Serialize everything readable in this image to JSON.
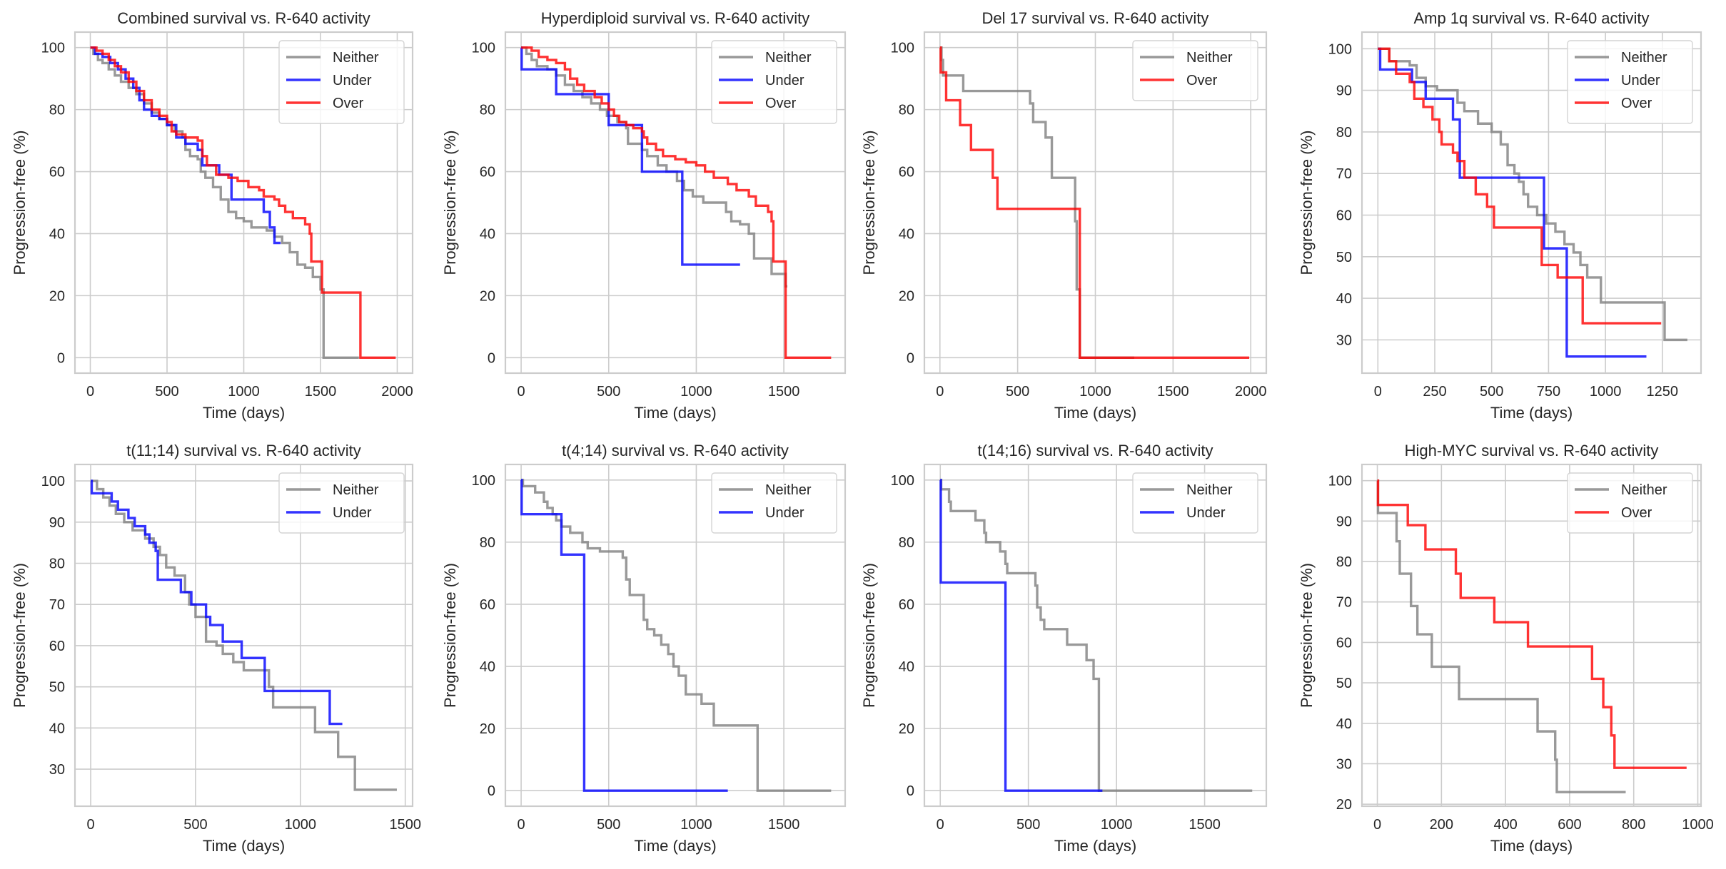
{
  "figure": {
    "series_colors": {
      "Neither": "#808080",
      "Under": "#0000ff",
      "Over": "#ff0000"
    }
  },
  "chart_data": [
    {
      "type": "line",
      "title": "Combined survival vs. R-640 activity",
      "xlabel": "Time (days)",
      "ylabel": "Progression-free (%)",
      "xlim": [
        -100,
        2100
      ],
      "ylim": [
        -5,
        105
      ],
      "xticks": [
        0,
        500,
        1000,
        1500,
        2000
      ],
      "yticks": [
        0,
        20,
        40,
        60,
        80,
        100
      ],
      "grid": true,
      "legend": "top-right",
      "series": [
        {
          "name": "Neither",
          "x": [
            0,
            20,
            50,
            80,
            120,
            160,
            200,
            250,
            300,
            350,
            400,
            450,
            500,
            550,
            600,
            620,
            650,
            700,
            720,
            750,
            800,
            850,
            900,
            950,
            1000,
            1050,
            1100,
            1150,
            1200,
            1250,
            1300,
            1350,
            1400,
            1450,
            1500,
            1520,
            1750
          ],
          "y": [
            100,
            98,
            96,
            95,
            93,
            91,
            89,
            87,
            85,
            82,
            79,
            77,
            75,
            73,
            71,
            67,
            65,
            64,
            60,
            58,
            55,
            51,
            47,
            45,
            44,
            42,
            42,
            41,
            39,
            37,
            34,
            30,
            29,
            26,
            22,
            0,
            0
          ]
        },
        {
          "name": "Under",
          "x": [
            0,
            30,
            80,
            130,
            180,
            230,
            280,
            320,
            350,
            400,
            450,
            500,
            560,
            620,
            700,
            730,
            840,
            920,
            1130,
            1170,
            1200,
            1240
          ],
          "y": [
            100,
            98,
            97,
            95,
            93,
            90,
            87,
            83,
            80,
            78,
            77,
            75,
            71,
            69,
            67,
            62,
            59,
            51,
            47,
            42,
            37,
            37
          ]
        },
        {
          "name": "Over",
          "x": [
            0,
            40,
            80,
            120,
            160,
            200,
            250,
            300,
            350,
            400,
            450,
            500,
            530,
            560,
            620,
            700,
            730,
            760,
            820,
            900,
            960,
            1030,
            1100,
            1130,
            1200,
            1230,
            1270,
            1320,
            1400,
            1430,
            1440,
            1500,
            1510,
            1750,
            1760,
            1990
          ],
          "y": [
            100,
            99,
            98,
            96,
            94,
            92,
            89,
            86,
            83,
            80,
            78,
            76,
            73,
            72,
            71,
            70,
            65,
            62,
            59,
            58,
            57,
            55,
            54,
            52,
            51,
            49,
            47,
            45,
            43,
            40,
            31,
            31,
            21,
            21,
            0,
            0
          ]
        }
      ]
    },
    {
      "type": "line",
      "title": "Hyperdiploid survival vs. R-640 activity",
      "xlabel": "Time (days)",
      "ylabel": "Progression-free (%)",
      "xlim": [
        -90,
        1850
      ],
      "ylim": [
        -5,
        105
      ],
      "xticks": [
        0,
        500,
        1000,
        1500
      ],
      "yticks": [
        0,
        20,
        40,
        60,
        80,
        100
      ],
      "grid": true,
      "legend": "top-right",
      "series": [
        {
          "name": "Neither",
          "x": [
            0,
            30,
            60,
            90,
            150,
            200,
            250,
            300,
            350,
            400,
            450,
            490,
            550,
            600,
            610,
            690,
            720,
            780,
            830,
            890,
            930,
            980,
            1040,
            1170,
            1200,
            1250,
            1300,
            1330,
            1430,
            1510,
            1520
          ],
          "y": [
            100,
            98,
            96,
            94,
            93,
            91,
            88,
            86,
            84,
            82,
            80,
            78,
            76,
            74,
            69,
            67,
            65,
            62,
            60,
            57,
            54,
            52,
            50,
            47,
            44,
            43,
            40,
            32,
            27,
            23,
            23
          ]
        },
        {
          "name": "Under",
          "x": [
            0,
            3,
            200,
            500,
            690,
            920,
            1250
          ],
          "y": [
            100,
            93,
            85,
            75,
            60,
            30,
            30
          ]
        },
        {
          "name": "Over",
          "x": [
            0,
            60,
            100,
            150,
            200,
            250,
            280,
            320,
            360,
            420,
            460,
            500,
            530,
            560,
            600,
            640,
            690,
            700,
            720,
            770,
            810,
            880,
            940,
            1000,
            1050,
            1100,
            1180,
            1230,
            1300,
            1340,
            1410,
            1430,
            1440,
            1510,
            1770
          ],
          "y": [
            100,
            99,
            97,
            96,
            95,
            93,
            90,
            88,
            86,
            84,
            82,
            80,
            78,
            76,
            75,
            74,
            73,
            71,
            69,
            67,
            65,
            64,
            63,
            62,
            60,
            58,
            56,
            54,
            52,
            49,
            47,
            44,
            31,
            0,
            0
          ]
        }
      ]
    },
    {
      "type": "line",
      "title": "Del 17 survival vs. R-640 activity",
      "xlabel": "Time (days)",
      "ylabel": "Progression-free (%)",
      "xlim": [
        -100,
        2100
      ],
      "ylim": [
        -5,
        105
      ],
      "xticks": [
        0,
        500,
        1000,
        1500,
        2000
      ],
      "yticks": [
        0,
        20,
        40,
        60,
        80,
        100
      ],
      "grid": true,
      "legend": "top-right",
      "series": [
        {
          "name": "Neither",
          "x": [
            0,
            10,
            20,
            150,
            580,
            600,
            680,
            720,
            870,
            880,
            900,
            910,
            1250
          ],
          "y": [
            100,
            96,
            91,
            86,
            82,
            76,
            71,
            58,
            44,
            22,
            0,
            0,
            0
          ]
        },
        {
          "name": "Over",
          "x": [
            0,
            5,
            40,
            130,
            200,
            340,
            370,
            900,
            1990
          ],
          "y": [
            100,
            92,
            83,
            75,
            67,
            58,
            48,
            0,
            0
          ]
        }
      ]
    },
    {
      "type": "line",
      "title": "Amp 1q survival vs. R-640 activity",
      "xlabel": "Time (days)",
      "ylabel": "Progression-free (%)",
      "xlim": [
        -70,
        1420
      ],
      "ylim": [
        22,
        104
      ],
      "xticks": [
        0,
        250,
        500,
        750,
        1000,
        1250
      ],
      "yticks": [
        30,
        40,
        50,
        60,
        70,
        80,
        90,
        100
      ],
      "grid": true,
      "legend": "top-right",
      "series": [
        {
          "name": "Neither",
          "x": [
            0,
            50,
            140,
            170,
            210,
            260,
            350,
            380,
            440,
            500,
            540,
            570,
            600,
            620,
            640,
            660,
            700,
            740,
            780,
            820,
            860,
            890,
            920,
            980,
            1260,
            1360
          ],
          "y": [
            100,
            97,
            96,
            93,
            91,
            90,
            87,
            85,
            82,
            80,
            77,
            72,
            70,
            68,
            65,
            62,
            60,
            58,
            56,
            53,
            51,
            48,
            45,
            39,
            30,
            30
          ]
        },
        {
          "name": "Under",
          "x": [
            0,
            10,
            150,
            210,
            330,
            360,
            730,
            830,
            1180
          ],
          "y": [
            100,
            95,
            92,
            88,
            83,
            69,
            52,
            26,
            26
          ]
        },
        {
          "name": "Over",
          "x": [
            0,
            50,
            80,
            140,
            160,
            200,
            240,
            270,
            280,
            330,
            350,
            380,
            430,
            480,
            510,
            720,
            790,
            900,
            1245
          ],
          "y": [
            100,
            97,
            94,
            92,
            88,
            86,
            83,
            80,
            77,
            75,
            73,
            69,
            65,
            62,
            57,
            48,
            45,
            34,
            34
          ]
        }
      ]
    },
    {
      "type": "line",
      "title": "t(11;14) survival vs. R-640 activity",
      "xlabel": "Time (days)",
      "ylabel": "Progression-free (%)",
      "xlim": [
        -75,
        1535
      ],
      "ylim": [
        21,
        104
      ],
      "xticks": [
        0,
        500,
        1000,
        1500
      ],
      "yticks": [
        30,
        40,
        50,
        60,
        70,
        80,
        90,
        100
      ],
      "grid": true,
      "legend": "top-right",
      "series": [
        {
          "name": "Neither",
          "x": [
            0,
            30,
            60,
            90,
            120,
            160,
            200,
            260,
            300,
            330,
            360,
            400,
            450,
            470,
            500,
            550,
            600,
            630,
            680,
            730,
            850,
            870,
            1070,
            1180,
            1260,
            1460
          ],
          "y": [
            100,
            98,
            96,
            94,
            92,
            90,
            88,
            86,
            84,
            82,
            79,
            77,
            73,
            70,
            67,
            61,
            60,
            58,
            56,
            54,
            50,
            45,
            39,
            33,
            25,
            25
          ]
        },
        {
          "name": "Under",
          "x": [
            0,
            5,
            100,
            130,
            180,
            210,
            260,
            280,
            310,
            320,
            430,
            480,
            550,
            570,
            630,
            720,
            830,
            1140,
            1200
          ],
          "y": [
            100,
            97,
            95,
            93,
            91,
            89,
            87,
            85,
            83,
            76,
            73,
            70,
            67,
            65,
            61,
            57,
            49,
            41,
            41
          ]
        }
      ]
    },
    {
      "type": "line",
      "title": "t(4;14) survival vs. R-640 activity",
      "xlabel": "Time (days)",
      "ylabel": "Progression-free (%)",
      "xlim": [
        -90,
        1850
      ],
      "ylim": [
        -5,
        105
      ],
      "xticks": [
        0,
        500,
        1000,
        1500
      ],
      "yticks": [
        0,
        20,
        40,
        60,
        80,
        100
      ],
      "grid": true,
      "legend": "top-right",
      "series": [
        {
          "name": "Neither",
          "x": [
            0,
            10,
            80,
            130,
            150,
            180,
            200,
            230,
            280,
            350,
            380,
            450,
            580,
            600,
            620,
            700,
            720,
            760,
            800,
            840,
            870,
            900,
            940,
            1030,
            1100,
            1350,
            1770
          ],
          "y": [
            100,
            98,
            96,
            93,
            91,
            89,
            87,
            85,
            83,
            80,
            78,
            77,
            75,
            68,
            63,
            55,
            52,
            50,
            47,
            44,
            40,
            37,
            31,
            28,
            21,
            0,
            0
          ]
        },
        {
          "name": "Under",
          "x": [
            0,
            3,
            230,
            360,
            1180
          ],
          "y": [
            100,
            89,
            76,
            0,
            0
          ]
        }
      ]
    },
    {
      "type": "line",
      "title": "t(14;16) survival vs. R-640 activity",
      "xlabel": "Time (days)",
      "ylabel": "Progression-free (%)",
      "xlim": [
        -90,
        1850
      ],
      "ylim": [
        -5,
        105
      ],
      "xticks": [
        0,
        500,
        1000,
        1500
      ],
      "yticks": [
        0,
        20,
        40,
        60,
        80,
        100
      ],
      "grid": true,
      "legend": "top-right",
      "series": [
        {
          "name": "Neither",
          "x": [
            0,
            5,
            50,
            60,
            200,
            250,
            260,
            340,
            370,
            380,
            540,
            550,
            570,
            590,
            720,
            830,
            870,
            900,
            1770
          ],
          "y": [
            100,
            97,
            93,
            90,
            87,
            83,
            80,
            77,
            73,
            70,
            66,
            59,
            55,
            52,
            47,
            42,
            36,
            0,
            0
          ]
        },
        {
          "name": "Under",
          "x": [
            0,
            3,
            370,
            920
          ],
          "y": [
            100,
            67,
            0,
            0
          ]
        }
      ]
    },
    {
      "type": "line",
      "title": "High-MYC survival vs. R-640 activity",
      "xlabel": "Time (days)",
      "ylabel": "Progression-free (%)",
      "xlim": [
        -48,
        1010
      ],
      "ylim": [
        19.5,
        104
      ],
      "xticks": [
        0,
        200,
        400,
        600,
        800,
        1000
      ],
      "yticks": [
        20,
        30,
        40,
        50,
        60,
        70,
        80,
        90,
        100
      ],
      "grid": true,
      "legend": "top-right",
      "series": [
        {
          "name": "Neither",
          "x": [
            0,
            2,
            60,
            70,
            105,
            125,
            170,
            255,
            500,
            555,
            560,
            775
          ],
          "y": [
            100,
            92,
            85,
            77,
            69,
            62,
            54,
            46,
            38,
            31,
            23,
            23
          ]
        },
        {
          "name": "Over",
          "x": [
            0,
            2,
            95,
            150,
            245,
            260,
            365,
            470,
            670,
            705,
            730,
            740,
            965
          ],
          "y": [
            100,
            94,
            89,
            83,
            77,
            71,
            65,
            59,
            51,
            44,
            37,
            29,
            29
          ]
        }
      ]
    }
  ]
}
